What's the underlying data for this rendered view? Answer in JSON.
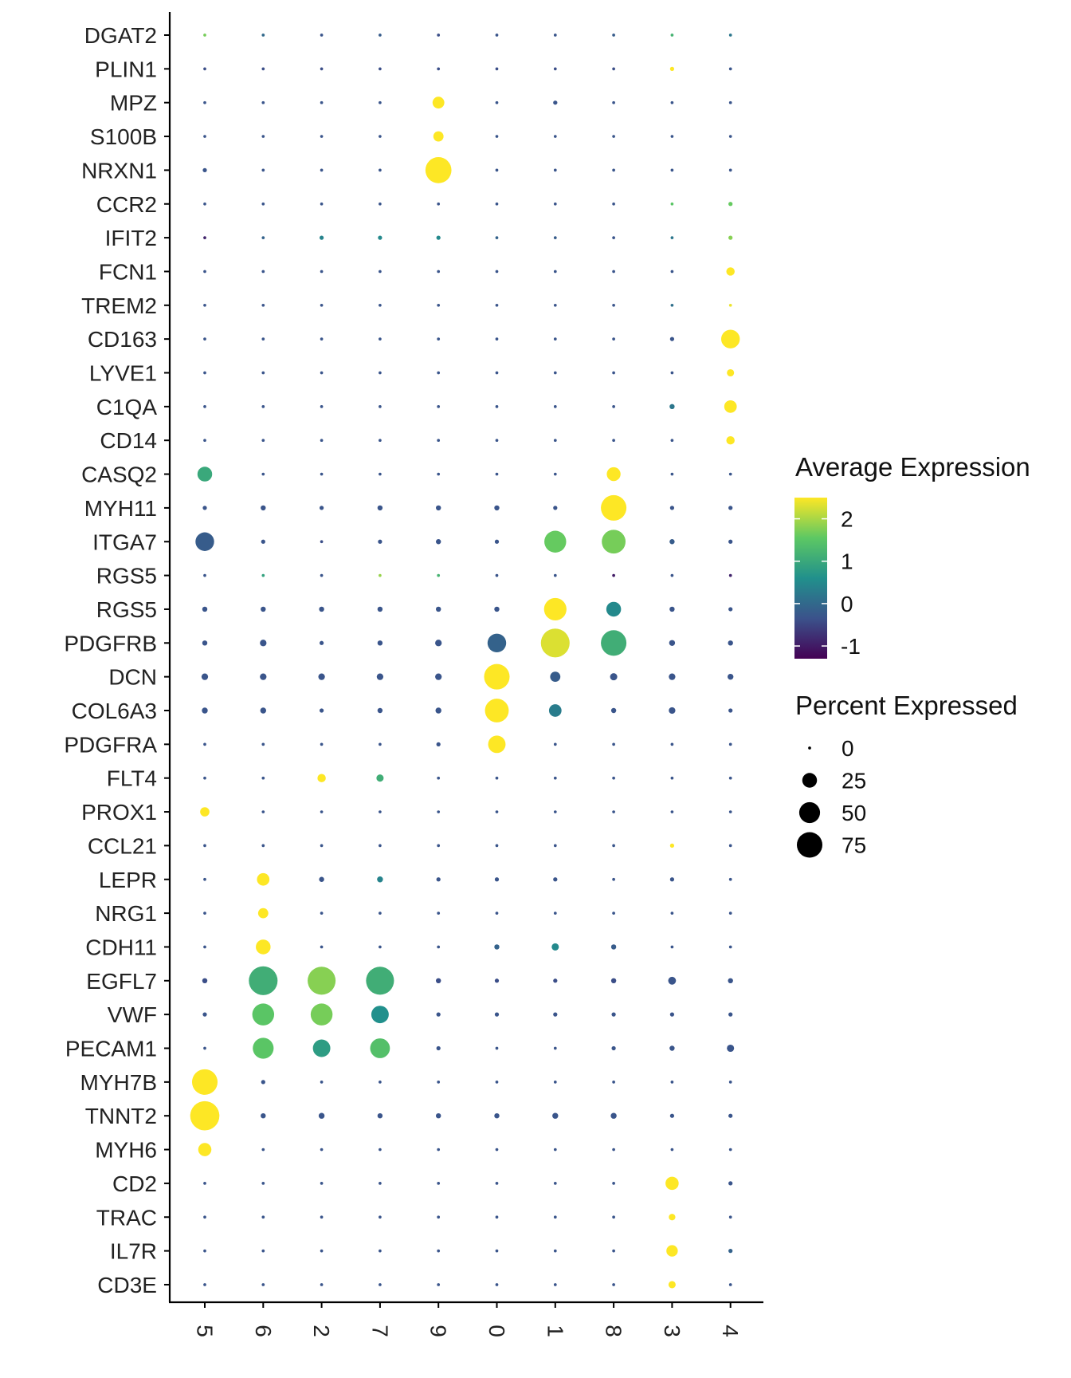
{
  "chart_data": {
    "type": "dotplot",
    "title": "",
    "xlabel": "",
    "ylabel": "",
    "clusters": [
      "5",
      "6",
      "2",
      "7",
      "9",
      "0",
      "1",
      "8",
      "3",
      "4"
    ],
    "genes": [
      "DGAT2",
      "PLIN1",
      "MPZ",
      "S100B",
      "NRXN1",
      "CCR2",
      "IFIT2",
      "FCN1",
      "TREM2",
      "CD163",
      "LYVE1",
      "C1QA",
      "CD14",
      "CASQ2",
      "MYH11",
      "ITGA7",
      "RGS5",
      "RGS5",
      "PDGFRB",
      "DCN",
      "COL6A3",
      "PDGFRA",
      "FLT4",
      "PROX1",
      "CCL21",
      "LEPR",
      "NRG1",
      "CDH11",
      "EGFL7",
      "VWF",
      "PECAM1",
      "MYH7B",
      "TNNT2",
      "MYH6",
      "CD2",
      "TRAC",
      "IL7R",
      "CD3E"
    ],
    "percent_expressed": [
      [
        1,
        1,
        1,
        1,
        1,
        1,
        1,
        1,
        1,
        1
      ],
      [
        1,
        1,
        1,
        1,
        1,
        1,
        1,
        1,
        2,
        1
      ],
      [
        1,
        1,
        1,
        1,
        16,
        1,
        2,
        1,
        1,
        1
      ],
      [
        1,
        1,
        1,
        1,
        12,
        1,
        1,
        1,
        1,
        1
      ],
      [
        2,
        1,
        1,
        1,
        78,
        1,
        1,
        1,
        1,
        1
      ],
      [
        1,
        1,
        1,
        1,
        1,
        1,
        1,
        1,
        1,
        2
      ],
      [
        1,
        1,
        2,
        2,
        2,
        1,
        1,
        1,
        1,
        2
      ],
      [
        1,
        1,
        1,
        1,
        1,
        1,
        1,
        1,
        1,
        8
      ],
      [
        1,
        1,
        1,
        1,
        1,
        1,
        1,
        1,
        1,
        1
      ],
      [
        1,
        1,
        1,
        1,
        1,
        1,
        1,
        1,
        2,
        40
      ],
      [
        1,
        1,
        1,
        1,
        1,
        1,
        1,
        1,
        1,
        6
      ],
      [
        1,
        1,
        1,
        1,
        1,
        1,
        1,
        1,
        3,
        18
      ],
      [
        1,
        1,
        1,
        1,
        1,
        1,
        1,
        1,
        1,
        8
      ],
      [
        25,
        1,
        1,
        1,
        1,
        1,
        1,
        22,
        1,
        1
      ],
      [
        2,
        3,
        2,
        3,
        3,
        3,
        2,
        75,
        2,
        2
      ],
      [
        40,
        2,
        1,
        2,
        3,
        2,
        55,
        65,
        3,
        2
      ],
      [
        1,
        1,
        1,
        1,
        1,
        1,
        1,
        1,
        1,
        1
      ],
      [
        3,
        3,
        3,
        3,
        3,
        3,
        58,
        25,
        3,
        2
      ],
      [
        3,
        5,
        2,
        3,
        5,
        40,
        95,
        75,
        4,
        3
      ],
      [
        5,
        5,
        5,
        5,
        5,
        75,
        12,
        6,
        5,
        4
      ],
      [
        4,
        4,
        2,
        3,
        4,
        65,
        18,
        3,
        5,
        2
      ],
      [
        1,
        1,
        1,
        1,
        2,
        35,
        1,
        1,
        1,
        1
      ],
      [
        1,
        1,
        8,
        6,
        1,
        1,
        1,
        1,
        1,
        1
      ],
      [
        10,
        1,
        1,
        1,
        1,
        1,
        1,
        1,
        1,
        1
      ],
      [
        1,
        1,
        1,
        1,
        1,
        1,
        1,
        1,
        2,
        1
      ],
      [
        1,
        18,
        3,
        4,
        2,
        2,
        2,
        1,
        2,
        1
      ],
      [
        1,
        12,
        1,
        1,
        1,
        1,
        1,
        1,
        1,
        1
      ],
      [
        1,
        25,
        1,
        1,
        1,
        3,
        6,
        3,
        1,
        1
      ],
      [
        3,
        95,
        90,
        90,
        3,
        2,
        2,
        3,
        7,
        3
      ],
      [
        2,
        55,
        55,
        35,
        2,
        2,
        2,
        2,
        2,
        2
      ],
      [
        1,
        50,
        35,
        45,
        2,
        1,
        1,
        2,
        3,
        6
      ],
      [
        75,
        2,
        1,
        1,
        1,
        1,
        1,
        1,
        1,
        1
      ],
      [
        98,
        3,
        4,
        3,
        3,
        3,
        4,
        4,
        2,
        2
      ],
      [
        20,
        1,
        1,
        1,
        1,
        1,
        1,
        1,
        1,
        1
      ],
      [
        1,
        1,
        1,
        1,
        1,
        1,
        1,
        1,
        20,
        2
      ],
      [
        1,
        1,
        1,
        1,
        1,
        1,
        1,
        1,
        5,
        1
      ],
      [
        1,
        1,
        1,
        1,
        1,
        1,
        1,
        1,
        15,
        2
      ],
      [
        1,
        1,
        1,
        1,
        1,
        1,
        1,
        1,
        6,
        1
      ]
    ],
    "average_expression": [
      [
        1.7,
        0.0,
        -0.3,
        -0.2,
        -0.4,
        -0.3,
        -0.3,
        -0.2,
        1.2,
        0.2
      ],
      [
        -0.4,
        -0.4,
        -0.4,
        -0.4,
        -0.4,
        -0.4,
        -0.4,
        -0.4,
        2.5,
        -0.3
      ],
      [
        -0.3,
        -0.3,
        -0.3,
        -0.3,
        2.5,
        -0.3,
        -0.3,
        -0.3,
        -0.3,
        -0.3
      ],
      [
        -0.3,
        -0.3,
        -0.3,
        -0.3,
        2.5,
        -0.3,
        -0.3,
        -0.3,
        -0.3,
        -0.3
      ],
      [
        -0.3,
        -0.3,
        -0.3,
        -0.3,
        2.5,
        -0.3,
        -0.3,
        -0.3,
        -0.3,
        -0.3
      ],
      [
        -0.3,
        -0.3,
        -0.3,
        -0.3,
        -0.3,
        -0.3,
        -0.3,
        -0.3,
        1.5,
        1.6
      ],
      [
        -0.9,
        -0.1,
        0.4,
        0.5,
        0.5,
        -0.1,
        -0.2,
        -0.3,
        0.2,
        1.8
      ],
      [
        -0.3,
        -0.3,
        -0.3,
        -0.3,
        -0.3,
        -0.3,
        -0.3,
        -0.3,
        -0.3,
        2.5
      ],
      [
        -0.3,
        -0.3,
        -0.3,
        -0.3,
        -0.3,
        -0.3,
        -0.3,
        -0.3,
        0.1,
        2.4
      ],
      [
        -0.3,
        -0.3,
        -0.3,
        -0.3,
        -0.3,
        -0.3,
        -0.3,
        -0.3,
        -0.3,
        2.5
      ],
      [
        -0.3,
        -0.3,
        -0.3,
        -0.3,
        -0.3,
        -0.3,
        -0.3,
        -0.3,
        -0.3,
        2.5
      ],
      [
        -0.3,
        -0.3,
        -0.3,
        -0.3,
        -0.3,
        -0.3,
        -0.3,
        -0.3,
        0.2,
        2.5
      ],
      [
        -0.3,
        -0.3,
        -0.3,
        -0.3,
        -0.3,
        -0.3,
        -0.3,
        -0.3,
        -0.3,
        2.5
      ],
      [
        1.0,
        -0.3,
        -0.3,
        -0.3,
        -0.3,
        -0.3,
        -0.3,
        2.5,
        -0.3,
        -0.3
      ],
      [
        -0.3,
        -0.3,
        -0.3,
        -0.3,
        -0.3,
        -0.3,
        -0.3,
        2.5,
        -0.3,
        -0.3
      ],
      [
        -0.2,
        -0.3,
        -0.4,
        -0.3,
        -0.3,
        -0.3,
        1.6,
        1.7,
        -0.2,
        -0.3
      ],
      [
        -0.3,
        0.9,
        -0.3,
        1.9,
        1.2,
        -0.3,
        -0.3,
        -1.0,
        -0.3,
        -0.9
      ],
      [
        -0.3,
        -0.3,
        -0.3,
        -0.3,
        -0.3,
        -0.3,
        2.5,
        0.5,
        -0.3,
        -0.3
      ],
      [
        -0.3,
        -0.3,
        -0.3,
        -0.3,
        -0.3,
        -0.1,
        2.3,
        1.1,
        -0.3,
        -0.3
      ],
      [
        -0.3,
        -0.3,
        -0.3,
        -0.3,
        -0.3,
        2.5,
        -0.2,
        -0.3,
        -0.3,
        -0.3
      ],
      [
        -0.3,
        -0.3,
        -0.3,
        -0.3,
        -0.3,
        2.5,
        0.3,
        -0.3,
        -0.3,
        -0.3
      ],
      [
        -0.3,
        -0.3,
        -0.3,
        -0.3,
        -0.3,
        2.5,
        -0.3,
        -0.3,
        -0.3,
        -0.3
      ],
      [
        -0.3,
        -0.3,
        2.5,
        1.1,
        -0.3,
        -0.3,
        -0.3,
        -0.3,
        -0.3,
        -0.3
      ],
      [
        2.5,
        -0.3,
        -0.3,
        -0.3,
        -0.3,
        -0.3,
        -0.3,
        -0.3,
        -0.3,
        -0.3
      ],
      [
        -0.3,
        -0.3,
        -0.3,
        -0.3,
        -0.3,
        -0.3,
        -0.3,
        -0.3,
        2.5,
        -0.3
      ],
      [
        -0.3,
        2.5,
        -0.3,
        0.4,
        -0.3,
        -0.3,
        -0.3,
        -0.3,
        -0.3,
        -0.3
      ],
      [
        -0.3,
        2.5,
        -0.3,
        -0.3,
        -0.3,
        -0.3,
        -0.3,
        -0.3,
        -0.3,
        -0.3
      ],
      [
        -0.3,
        2.5,
        -0.3,
        -0.3,
        -0.3,
        -0.1,
        0.5,
        -0.2,
        -0.3,
        -0.3
      ],
      [
        -0.4,
        1.1,
        1.8,
        1.1,
        -0.4,
        -0.4,
        -0.4,
        -0.4,
        -0.3,
        -0.3
      ],
      [
        -0.3,
        1.5,
        1.7,
        0.6,
        -0.3,
        -0.3,
        -0.3,
        -0.3,
        -0.3,
        -0.3
      ],
      [
        -0.3,
        1.5,
        0.8,
        1.4,
        -0.3,
        -0.3,
        -0.3,
        -0.3,
        -0.3,
        -0.3
      ],
      [
        2.5,
        -0.3,
        -0.3,
        -0.3,
        -0.3,
        -0.3,
        -0.3,
        -0.3,
        -0.3,
        -0.3
      ],
      [
        2.5,
        -0.3,
        -0.3,
        -0.3,
        -0.3,
        -0.3,
        -0.3,
        -0.3,
        -0.3,
        -0.3
      ],
      [
        2.5,
        -0.3,
        -0.3,
        -0.3,
        -0.3,
        -0.3,
        -0.3,
        -0.3,
        -0.3,
        -0.3
      ],
      [
        -0.3,
        -0.3,
        -0.3,
        -0.3,
        -0.3,
        -0.3,
        -0.3,
        -0.3,
        2.5,
        -0.3
      ],
      [
        -0.3,
        -0.3,
        -0.3,
        -0.3,
        -0.3,
        -0.3,
        -0.3,
        -0.3,
        2.5,
        -0.3
      ],
      [
        -0.3,
        -0.3,
        -0.3,
        -0.3,
        -0.3,
        -0.3,
        -0.3,
        -0.3,
        2.5,
        -0.1
      ],
      [
        -0.3,
        -0.3,
        -0.3,
        -0.3,
        -0.3,
        -0.3,
        -0.3,
        -0.3,
        2.5,
        -0.3
      ]
    ],
    "color_legend": {
      "title": "Average Expression",
      "range": [
        -1.3,
        2.5
      ],
      "ticks": [
        2,
        1,
        0,
        -1
      ],
      "tick_labels": [
        "2",
        "1",
        "0",
        "-1"
      ],
      "palette": [
        "#440154",
        "#3B528B",
        "#21908C",
        "#5DC863",
        "#FDE725"
      ]
    },
    "size_legend": {
      "title": "Percent Expressed",
      "values": [
        0,
        25,
        50,
        75
      ],
      "labels": [
        "0",
        "25",
        "50",
        "75"
      ]
    },
    "axis_color": "#000000",
    "legend_placement": "right"
  }
}
